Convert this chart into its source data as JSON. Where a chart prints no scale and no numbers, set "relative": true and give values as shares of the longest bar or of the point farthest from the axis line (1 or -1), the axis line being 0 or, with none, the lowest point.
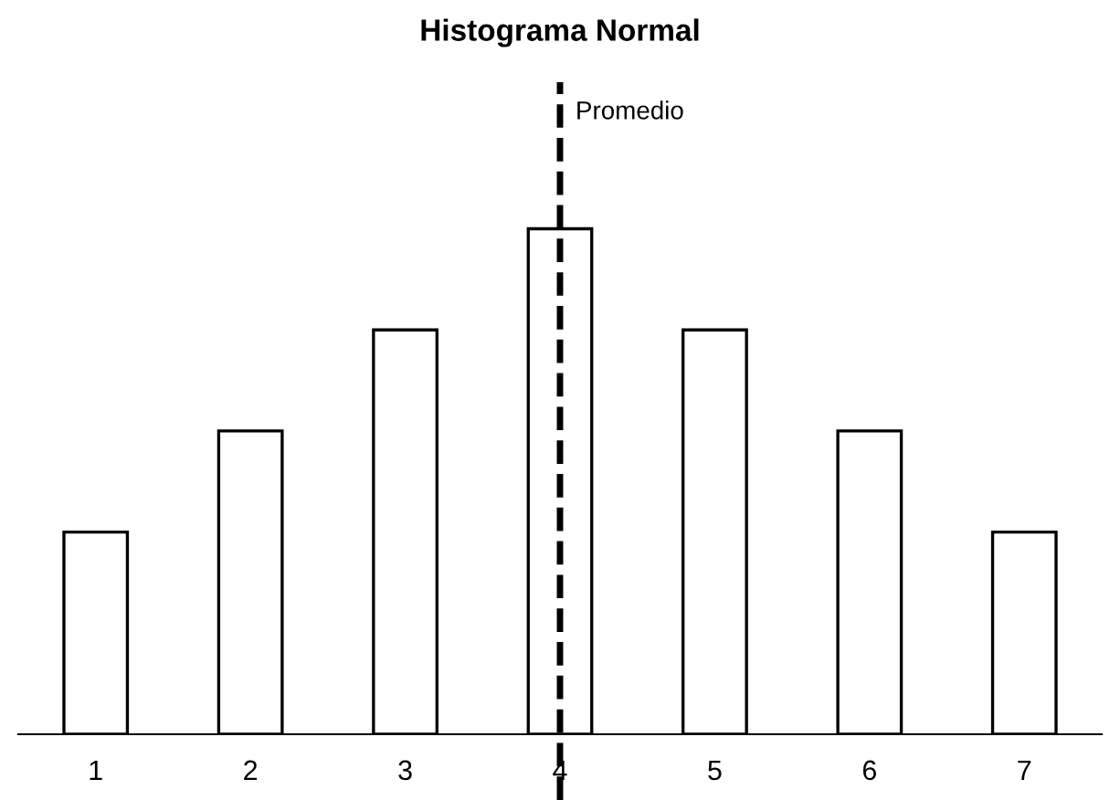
{
  "chart_data": {
    "type": "bar",
    "title": "Histograma Normal",
    "categories": [
      "1",
      "2",
      "3",
      "4",
      "5",
      "6",
      "7"
    ],
    "values": [
      0.4,
      0.6,
      0.8,
      1,
      0.8,
      0.6,
      0.4
    ],
    "color": "#ffffff",
    "relative": true,
    "grid": false,
    "legend": false,
    "ref_lines": [
      {
        "axis": "x",
        "value": "4",
        "label": "Promedio",
        "color": "#000000",
        "line_style": "dashed"
      }
    ]
  }
}
